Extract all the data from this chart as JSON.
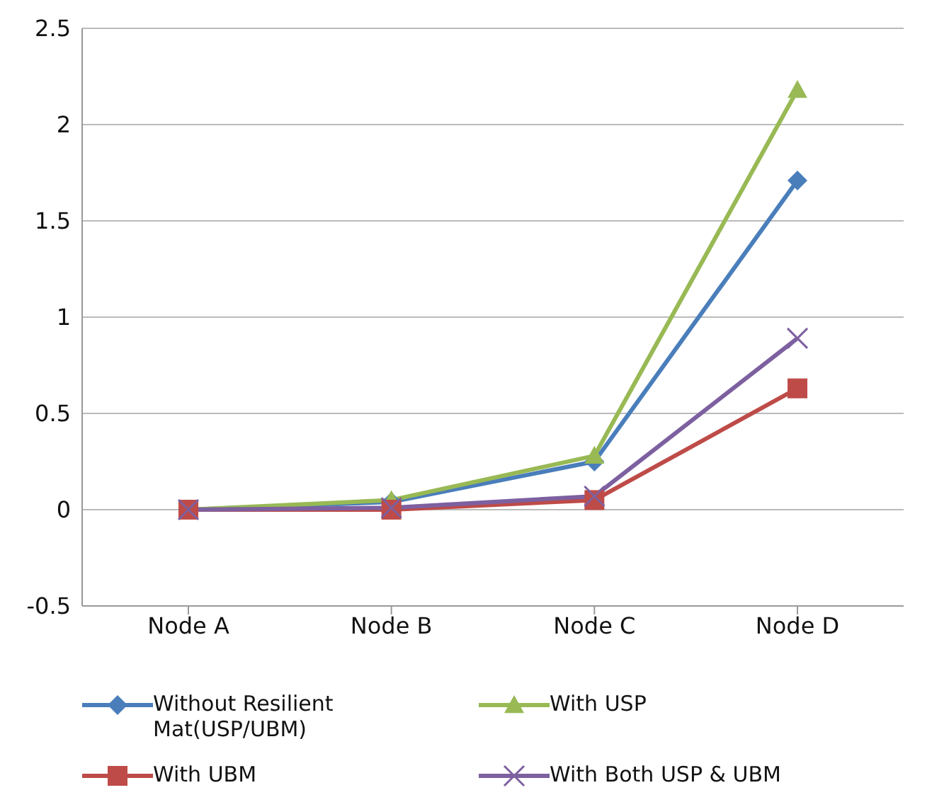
{
  "chart_data": {
    "type": "line",
    "categories": [
      "Node A",
      "Node B",
      "Node C",
      "Node D"
    ],
    "series": [
      {
        "name": "Without Resilient Mat(USP/UBM)",
        "color": "#4a7ebb",
        "marker": "diamond",
        "values": [
          0,
          0.04,
          0.25,
          1.71
        ]
      },
      {
        "name": "With USP",
        "color": "#98b954",
        "marker": "triangle",
        "values": [
          0,
          0.05,
          0.28,
          2.18
        ]
      },
      {
        "name": "With UBM",
        "color": "#be4b48",
        "marker": "square",
        "values": [
          0,
          0,
          0.05,
          0.63
        ]
      },
      {
        "name": "With Both USP & UBM",
        "color": "#7d60a0",
        "marker": "cross",
        "values": [
          0,
          0.01,
          0.07,
          0.89
        ]
      }
    ],
    "ylim": [
      -0.5,
      2.5
    ],
    "yticks": [
      -0.5,
      0,
      0.5,
      1,
      1.5,
      2,
      2.5
    ],
    "grid": "y",
    "legend": "bottom",
    "line_style": "solid"
  }
}
